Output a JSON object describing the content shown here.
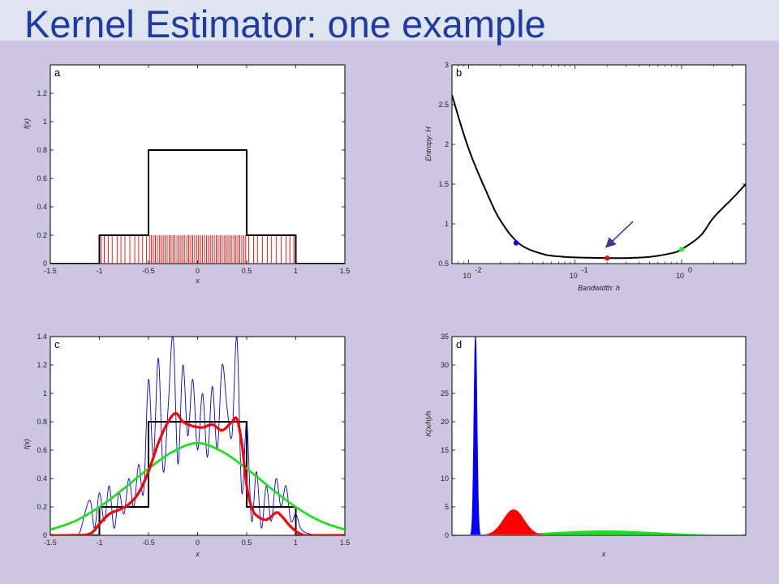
{
  "slide": {
    "title": "Kernel Estimator: one example"
  },
  "colors": {
    "background": "#ccc6e2",
    "title": "#1f3aa6",
    "panel": "#ffffff"
  },
  "chart_data": [
    {
      "id": "a",
      "label": "a",
      "type": "line",
      "xlabel": "x",
      "ylabel": "f(x)",
      "xlim": [
        -1.5,
        1.5
      ],
      "ylim": [
        0,
        1.4
      ],
      "xticks": [
        "-1.5",
        "-1",
        "-0.5",
        "0",
        "0.5",
        "1",
        "1.5"
      ],
      "yticks": [
        "0",
        "0.2",
        "0.4",
        "0.6",
        "0.8",
        "1",
        "1.2"
      ],
      "series": [
        {
          "color": "#000000",
          "x": [
            -1.5,
            -1,
            -1,
            -0.5,
            -0.5,
            0.5,
            0.5,
            1,
            1,
            1.5
          ],
          "y": [
            0,
            0,
            0.2,
            0.2,
            0.8,
            0.8,
            0.2,
            0.2,
            0,
            0
          ]
        }
      ],
      "rug": {
        "color": "#ff0000",
        "height": 0.2,
        "x": [
          -0.98,
          -0.95,
          -0.91,
          -0.87,
          -0.82,
          -0.78,
          -0.74,
          -0.69,
          -0.64,
          -0.6,
          -0.56,
          -0.52,
          -0.49,
          -0.47,
          -0.45,
          -0.43,
          -0.41,
          -0.39,
          -0.37,
          -0.35,
          -0.33,
          -0.31,
          -0.29,
          -0.27,
          -0.25,
          -0.23,
          -0.21,
          -0.19,
          -0.17,
          -0.15,
          -0.13,
          -0.11,
          -0.09,
          -0.07,
          -0.05,
          -0.03,
          -0.01,
          0.01,
          0.03,
          0.05,
          0.07,
          0.09,
          0.11,
          0.13,
          0.15,
          0.17,
          0.19,
          0.21,
          0.23,
          0.25,
          0.27,
          0.29,
          0.31,
          0.33,
          0.35,
          0.37,
          0.39,
          0.41,
          0.43,
          0.45,
          0.47,
          0.49,
          0.52,
          0.57,
          0.61,
          0.66,
          0.71,
          0.75,
          0.8,
          0.85,
          0.9,
          0.94,
          0.98
        ]
      }
    },
    {
      "id": "b",
      "label": "b",
      "type": "line",
      "xlabel": "Bandwidth: h",
      "ylabel": "Entropy: H",
      "xscale": "log",
      "xlim": [
        0.007,
        4
      ],
      "ylim": [
        0.5,
        3
      ],
      "xticks": [
        {
          "base": "10",
          "exp": "-2",
          "value": 0.01
        },
        {
          "base": "10",
          "exp": "-1",
          "value": 0.1
        },
        {
          "base": "10",
          "exp": "0",
          "value": 1
        }
      ],
      "yticks": [
        "0.5",
        "1",
        "1.5",
        "2",
        "2.5",
        "3"
      ],
      "series": [
        {
          "color": "#000000",
          "x": [
            0.007,
            0.01,
            0.015,
            0.02,
            0.03,
            0.05,
            0.08,
            0.12,
            0.2,
            0.3,
            0.5,
            0.8,
            1.0,
            1.5,
            2.0,
            3.0,
            4.0
          ],
          "y": [
            2.62,
            1.95,
            1.38,
            1.04,
            0.75,
            0.62,
            0.585,
            0.575,
            0.57,
            0.57,
            0.585,
            0.63,
            0.68,
            0.85,
            1.08,
            1.32,
            1.5
          ]
        }
      ],
      "markers": [
        {
          "x": 0.028,
          "y": 0.76,
          "color": "#0000ff"
        },
        {
          "x": 0.2,
          "y": 0.57,
          "color": "#ff0000"
        },
        {
          "x": 1.0,
          "y": 0.68,
          "color": "#33ee33"
        }
      ],
      "annotation": {
        "type": "arrow",
        "color": "#3b3b9e",
        "from": [
          0.35,
          1.03
        ],
        "to": [
          0.2,
          0.72
        ]
      }
    },
    {
      "id": "c",
      "label": "c",
      "type": "line",
      "xlabel": "x",
      "ylabel": "f(x)",
      "xlim": [
        -1.5,
        1.5
      ],
      "ylim": [
        0,
        1.4
      ],
      "xticks": [
        "-1.5",
        "-1",
        "-0.5",
        "0",
        "0.5",
        "1",
        "1.5"
      ],
      "yticks": [
        "0",
        "0.2",
        "0.4",
        "0.6",
        "0.8",
        "1",
        "1.2",
        "1.4"
      ],
      "series": [
        {
          "color": "#000000",
          "x": [
            -1.5,
            -1,
            -1,
            -0.5,
            -0.5,
            0.5,
            0.5,
            1,
            1,
            1.5
          ],
          "y": [
            0,
            0,
            0.2,
            0.2,
            0.8,
            0.8,
            0.2,
            0.2,
            0,
            0
          ]
        },
        {
          "color": "#ff0000",
          "x": [
            -1.5,
            -1.3,
            -1.1,
            -1.0,
            -0.9,
            -0.8,
            -0.7,
            -0.6,
            -0.5,
            -0.4,
            -0.3,
            -0.22,
            -0.15,
            -0.05,
            0.05,
            0.15,
            0.25,
            0.35,
            0.4,
            0.45,
            0.5,
            0.55,
            0.6,
            0.7,
            0.8,
            0.85,
            0.9,
            0.95,
            1.0,
            1.05,
            1.1,
            1.2,
            1.5
          ],
          "y": [
            0,
            0,
            0.01,
            0.08,
            0.15,
            0.18,
            0.22,
            0.3,
            0.45,
            0.65,
            0.8,
            0.86,
            0.8,
            0.77,
            0.76,
            0.78,
            0.74,
            0.8,
            0.82,
            0.65,
            0.35,
            0.2,
            0.14,
            0.11,
            0.16,
            0.14,
            0.1,
            0.06,
            0.03,
            0.01,
            0,
            0,
            0
          ]
        },
        {
          "color": "#22dd22",
          "x": [
            -1.5,
            -1.25,
            -1.0,
            -0.75,
            -0.5,
            -0.25,
            0,
            0.25,
            0.5,
            0.75,
            1.0,
            1.25,
            1.5
          ],
          "y": [
            0.04,
            0.1,
            0.2,
            0.33,
            0.47,
            0.59,
            0.65,
            0.59,
            0.47,
            0.33,
            0.2,
            0.1,
            0.04
          ]
        },
        {
          "color": "#0000ee",
          "wiggly": true,
          "x": [
            -1.25,
            -1.2,
            -1.1,
            -1.05,
            -1.0,
            -0.95,
            -0.9,
            -0.85,
            -0.8,
            -0.75,
            -0.7,
            -0.65,
            -0.6,
            -0.55,
            -0.5,
            -0.45,
            -0.4,
            -0.35,
            -0.3,
            -0.25,
            -0.2,
            -0.15,
            -0.1,
            -0.05,
            0,
            0.05,
            0.1,
            0.15,
            0.2,
            0.25,
            0.3,
            0.35,
            0.4,
            0.45,
            0.5,
            0.55,
            0.6,
            0.65,
            0.7,
            0.75,
            0.8,
            0.85,
            0.9,
            0.95,
            1.0,
            1.05,
            1.1,
            1.2
          ],
          "y": [
            0,
            0.02,
            0.25,
            0.05,
            0.3,
            0.1,
            0.35,
            0.05,
            0.3,
            0.15,
            0.4,
            0.2,
            0.5,
            0.3,
            1.1,
            0.55,
            1.25,
            0.45,
            0.9,
            1.4,
            0.5,
            1.2,
            0.7,
            1.1,
            0.6,
            1.0,
            0.55,
            1.05,
            0.6,
            1.2,
            0.9,
            0.7,
            1.4,
            0.3,
            0.8,
            0.1,
            0.45,
            0.05,
            0.35,
            0.1,
            0.4,
            0.2,
            0.35,
            0.1,
            0.15,
            0.05,
            0.02,
            0
          ]
        }
      ]
    },
    {
      "id": "d",
      "label": "d",
      "type": "area",
      "xlabel": "x",
      "ylabel": "K(x/h)/h",
      "xlim": [
        0,
        1
      ],
      "ylim": [
        0,
        35
      ],
      "yticks": [
        "0",
        "5",
        "10",
        "15",
        "20",
        "25",
        "30",
        "35"
      ],
      "series": [
        {
          "color": "#0000ff",
          "center": 0.08,
          "width": 0.005,
          "peak": 35
        },
        {
          "color": "#ff0000",
          "center": 0.21,
          "width": 0.035,
          "peak": 4.5
        },
        {
          "color": "#22dd22",
          "center": 0.52,
          "width": 0.17,
          "peak": 0.8
        }
      ]
    }
  ]
}
